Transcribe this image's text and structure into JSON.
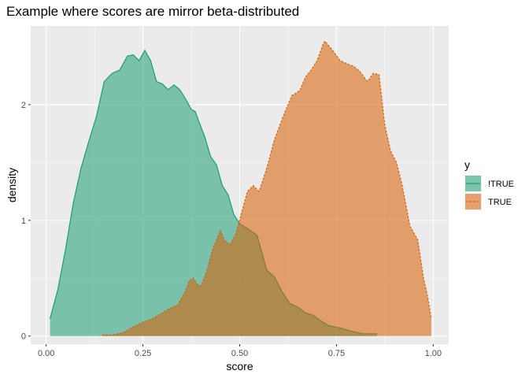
{
  "chart_data": {
    "type": "area",
    "title": "Example where scores are mirror beta-distributed",
    "xlabel": "score",
    "ylabel": "density",
    "xlim": [
      -0.04,
      1.04
    ],
    "ylim": [
      -0.07,
      2.68
    ],
    "x_ticks": [
      0.0,
      0.25,
      0.5,
      0.75,
      1.0
    ],
    "x_tick_labels": [
      "0.00",
      "0.25",
      "0.50",
      "0.75",
      "1.00"
    ],
    "y_ticks": [
      0,
      1,
      2
    ],
    "y_tick_labels": [
      "0",
      "1",
      "2"
    ],
    "grid": true,
    "legend": {
      "title": "y",
      "position": "right"
    },
    "series": [
      {
        "name": "!TRUE",
        "line_style": "solid",
        "fill": "#1b9e77",
        "line": "#1b9e77",
        "points": [
          [
            0.01,
            0.15
          ],
          [
            0.03,
            0.4
          ],
          [
            0.05,
            0.75
          ],
          [
            0.07,
            1.15
          ],
          [
            0.09,
            1.45
          ],
          [
            0.11,
            1.68
          ],
          [
            0.13,
            1.9
          ],
          [
            0.15,
            2.2
          ],
          [
            0.17,
            2.27
          ],
          [
            0.19,
            2.3
          ],
          [
            0.21,
            2.42
          ],
          [
            0.225,
            2.43
          ],
          [
            0.24,
            2.38
          ],
          [
            0.255,
            2.47
          ],
          [
            0.27,
            2.38
          ],
          [
            0.285,
            2.2
          ],
          [
            0.3,
            2.18
          ],
          [
            0.315,
            2.13
          ],
          [
            0.33,
            2.17
          ],
          [
            0.345,
            2.13
          ],
          [
            0.36,
            2.05
          ],
          [
            0.375,
            1.96
          ],
          [
            0.385,
            1.94
          ],
          [
            0.395,
            1.85
          ],
          [
            0.41,
            1.72
          ],
          [
            0.425,
            1.55
          ],
          [
            0.44,
            1.48
          ],
          [
            0.455,
            1.3
          ],
          [
            0.47,
            1.22
          ],
          [
            0.485,
            1.05
          ],
          [
            0.5,
            0.97
          ],
          [
            0.52,
            0.93
          ],
          [
            0.545,
            0.87
          ],
          [
            0.57,
            0.57
          ],
          [
            0.59,
            0.51
          ],
          [
            0.61,
            0.38
          ],
          [
            0.63,
            0.28
          ],
          [
            0.65,
            0.25
          ],
          [
            0.67,
            0.2
          ],
          [
            0.69,
            0.18
          ],
          [
            0.71,
            0.13
          ],
          [
            0.73,
            0.09
          ],
          [
            0.76,
            0.07
          ],
          [
            0.79,
            0.04
          ],
          [
            0.82,
            0.02
          ],
          [
            0.855,
            0.02
          ]
        ]
      },
      {
        "name": "TRUE",
        "line_style": "dashed",
        "fill": "#d95f02",
        "line": "#d95f02",
        "points": [
          [
            0.145,
            0.01
          ],
          [
            0.17,
            0.01
          ],
          [
            0.2,
            0.03
          ],
          [
            0.225,
            0.08
          ],
          [
            0.25,
            0.12
          ],
          [
            0.275,
            0.15
          ],
          [
            0.3,
            0.2
          ],
          [
            0.32,
            0.24
          ],
          [
            0.34,
            0.27
          ],
          [
            0.36,
            0.39
          ],
          [
            0.37,
            0.48
          ],
          [
            0.38,
            0.5
          ],
          [
            0.39,
            0.45
          ],
          [
            0.4,
            0.43
          ],
          [
            0.415,
            0.56
          ],
          [
            0.43,
            0.75
          ],
          [
            0.44,
            0.83
          ],
          [
            0.45,
            0.91
          ],
          [
            0.46,
            0.83
          ],
          [
            0.475,
            0.79
          ],
          [
            0.49,
            0.88
          ],
          [
            0.505,
            1.07
          ],
          [
            0.52,
            1.25
          ],
          [
            0.535,
            1.3
          ],
          [
            0.55,
            1.25
          ],
          [
            0.57,
            1.45
          ],
          [
            0.59,
            1.7
          ],
          [
            0.615,
            1.92
          ],
          [
            0.635,
            2.08
          ],
          [
            0.655,
            2.12
          ],
          [
            0.67,
            2.24
          ],
          [
            0.685,
            2.3
          ],
          [
            0.7,
            2.38
          ],
          [
            0.715,
            2.52
          ],
          [
            0.72,
            2.55
          ],
          [
            0.74,
            2.47
          ],
          [
            0.76,
            2.38
          ],
          [
            0.78,
            2.35
          ],
          [
            0.795,
            2.33
          ],
          [
            0.81,
            2.29
          ],
          [
            0.83,
            2.2
          ],
          [
            0.845,
            2.27
          ],
          [
            0.86,
            2.26
          ],
          [
            0.875,
            1.82
          ],
          [
            0.89,
            1.6
          ],
          [
            0.905,
            1.5
          ],
          [
            0.92,
            1.3
          ],
          [
            0.94,
            0.95
          ],
          [
            0.96,
            0.83
          ],
          [
            0.975,
            0.5
          ],
          [
            0.985,
            0.35
          ],
          [
            0.995,
            0.15
          ]
        ]
      }
    ]
  },
  "colors": {
    "panel_background": "#ebebeb",
    "grid_major": "#ffffff",
    "series_1": "#1b9e77",
    "series_2": "#d95f02"
  }
}
